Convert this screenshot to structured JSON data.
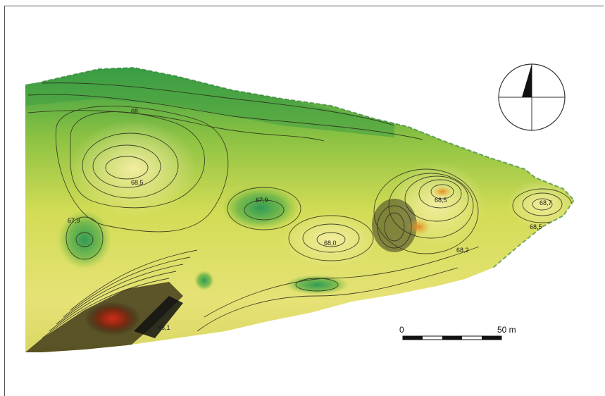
{
  "map": {
    "contour_labels": [
      "68",
      "68,5",
      "67,9",
      "67,9",
      "68,0",
      "68,5",
      "68,7",
      "68,2",
      "68,5",
      "66,1"
    ],
    "scale_bar": {
      "start_label": "0",
      "end_label": "50 m"
    },
    "north_arrow": {
      "icon": "north-arrow-icon"
    },
    "colors": {
      "low": "#2f9a45",
      "mid": "#c9d84a",
      "high": "#e8e070",
      "peak": "#c0281c",
      "contour": "#2b2b1a"
    }
  }
}
